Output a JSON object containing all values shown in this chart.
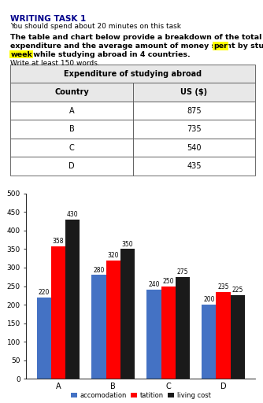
{
  "title_bold": "WRITING TASK 1",
  "subtitle": "You should spend about 20 minutes on this task",
  "para_line1": "The table and chart below provide a breakdown of the total",
  "para_line2_pre": "expenditure and the average amount of money spent by students ",
  "para_line2_highlight": "per",
  "para_line3_highlight": "week",
  "para_line3_post": " while studying abroad in 4 countries.",
  "write_note": "Write at least 150 words.",
  "table_title": "Expenditure of studying abroad",
  "table_headers": [
    "Country",
    "US ($)"
  ],
  "table_data": [
    [
      "A",
      "875"
    ],
    [
      "B",
      "735"
    ],
    [
      "C",
      "540"
    ],
    [
      "D",
      "435"
    ]
  ],
  "countries": [
    "A",
    "B",
    "C",
    "D"
  ],
  "accommodation": [
    220,
    280,
    240,
    200
  ],
  "tuition": [
    358,
    320,
    250,
    235
  ],
  "living_cost": [
    430,
    350,
    275,
    225
  ],
  "bar_colors": [
    "#4472C4",
    "#FF0000",
    "#1A1A1A"
  ],
  "legend_labels": [
    "accomodation",
    "tatition",
    "living cost"
  ],
  "ylim": [
    0,
    500
  ],
  "yticks": [
    0,
    50,
    100,
    150,
    200,
    250,
    300,
    350,
    400,
    450,
    500
  ],
  "highlight_color": "#FFFF00",
  "background_color": "#FFFFFF"
}
